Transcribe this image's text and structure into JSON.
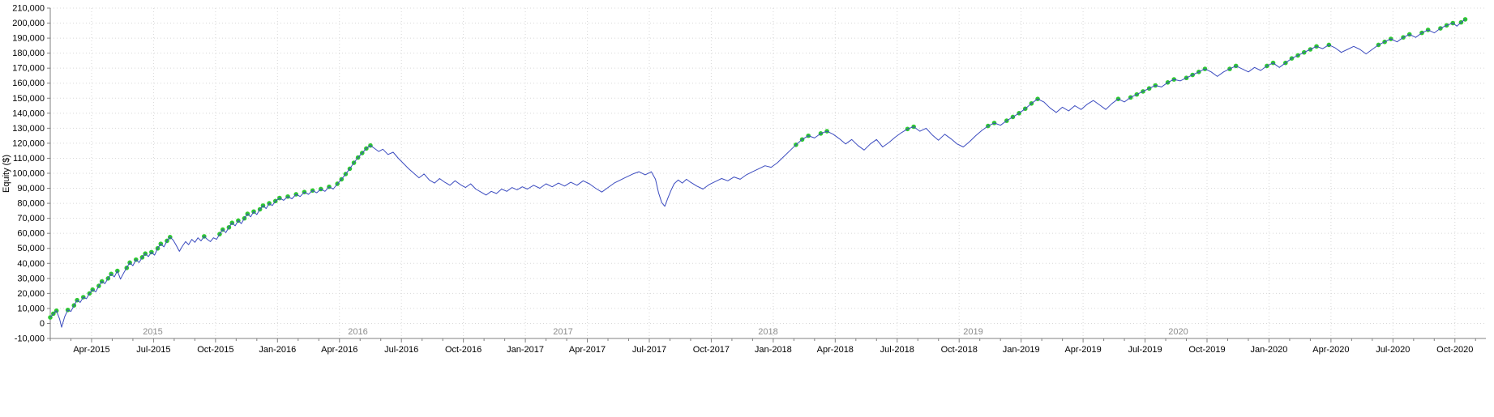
{
  "chart_data": {
    "type": "line",
    "title": "",
    "xlabel": "",
    "ylabel": "Equity ($)",
    "ylim": [
      -10000,
      210000
    ],
    "ytick_step": 10000,
    "x_domain": [
      1,
      70.5
    ],
    "grid": true,
    "legend": "none",
    "colors": {
      "line": "#3b4bbf",
      "new_high": "#2fc832",
      "grid": "#d8d8d8",
      "axis": "#808080",
      "year_label": "#8c8c8c",
      "tick_label": "#000000"
    },
    "x_ticks": [
      {
        "m": 3,
        "label": "Apr-2015"
      },
      {
        "m": 6,
        "label": "Jul-2015"
      },
      {
        "m": 9,
        "label": "Oct-2015"
      },
      {
        "m": 12,
        "label": "Jan-2016"
      },
      {
        "m": 15,
        "label": "Apr-2016"
      },
      {
        "m": 18,
        "label": "Jul-2016"
      },
      {
        "m": 21,
        "label": "Oct-2016"
      },
      {
        "m": 24,
        "label": "Jan-2017"
      },
      {
        "m": 27,
        "label": "Apr-2017"
      },
      {
        "m": 30,
        "label": "Jul-2017"
      },
      {
        "m": 33,
        "label": "Oct-2017"
      },
      {
        "m": 36,
        "label": "Jan-2018"
      },
      {
        "m": 39,
        "label": "Apr-2018"
      },
      {
        "m": 42,
        "label": "Jul-2018"
      },
      {
        "m": 45,
        "label": "Oct-2018"
      },
      {
        "m": 48,
        "label": "Jan-2019"
      },
      {
        "m": 51,
        "label": "Apr-2019"
      },
      {
        "m": 54,
        "label": "Jul-2019"
      },
      {
        "m": 57,
        "label": "Oct-2019"
      },
      {
        "m": 60,
        "label": "Jan-2020"
      },
      {
        "m": 63,
        "label": "Apr-2020"
      },
      {
        "m": 66,
        "label": "Jul-2020"
      },
      {
        "m": 69,
        "label": "Oct-2020"
      }
    ],
    "year_labels": [
      "2015",
      "2016",
      "2017",
      "2018",
      "2019",
      "2020"
    ],
    "series": [
      {
        "name": "Equity",
        "points": [
          [
            1.0,
            4000
          ],
          [
            1.15,
            6500
          ],
          [
            1.3,
            8500
          ],
          [
            1.45,
            3000
          ],
          [
            1.55,
            -2500
          ],
          [
            1.7,
            4500
          ],
          [
            1.85,
            9000
          ],
          [
            2.0,
            8000
          ],
          [
            2.15,
            12000
          ],
          [
            2.3,
            15500
          ],
          [
            2.45,
            14000
          ],
          [
            2.6,
            17500
          ],
          [
            2.75,
            16500
          ],
          [
            2.9,
            20000
          ],
          [
            3.05,
            22500
          ],
          [
            3.2,
            21000
          ],
          [
            3.35,
            25000
          ],
          [
            3.5,
            28000
          ],
          [
            3.65,
            26500
          ],
          [
            3.8,
            30000
          ],
          [
            3.95,
            33000
          ],
          [
            4.1,
            31000
          ],
          [
            4.25,
            35000
          ],
          [
            4.4,
            29500
          ],
          [
            4.55,
            33500
          ],
          [
            4.7,
            37000
          ],
          [
            4.85,
            40500
          ],
          [
            5.0,
            38500
          ],
          [
            5.15,
            42500
          ],
          [
            5.3,
            40500
          ],
          [
            5.45,
            44000
          ],
          [
            5.6,
            46500
          ],
          [
            5.75,
            44500
          ],
          [
            5.9,
            47500
          ],
          [
            6.05,
            45500
          ],
          [
            6.2,
            50000
          ],
          [
            6.35,
            53000
          ],
          [
            6.5,
            51000
          ],
          [
            6.65,
            55000
          ],
          [
            6.8,
            57500
          ],
          [
            6.95,
            55500
          ],
          [
            7.1,
            52000
          ],
          [
            7.25,
            48000
          ],
          [
            7.4,
            51500
          ],
          [
            7.55,
            54500
          ],
          [
            7.7,
            52500
          ],
          [
            7.85,
            56000
          ],
          [
            8.0,
            54000
          ],
          [
            8.15,
            57000
          ],
          [
            8.3,
            55000
          ],
          [
            8.45,
            58000
          ],
          [
            8.6,
            56000
          ],
          [
            8.75,
            54500
          ],
          [
            8.9,
            57000
          ],
          [
            9.05,
            56000
          ],
          [
            9.2,
            59500
          ],
          [
            9.35,
            62500
          ],
          [
            9.5,
            60500
          ],
          [
            9.65,
            64000
          ],
          [
            9.8,
            67000
          ],
          [
            9.95,
            65000
          ],
          [
            10.1,
            68500
          ],
          [
            10.25,
            66500
          ],
          [
            10.4,
            70000
          ],
          [
            10.55,
            73000
          ],
          [
            10.7,
            71000
          ],
          [
            10.85,
            74500
          ],
          [
            11.0,
            72500
          ],
          [
            11.15,
            76000
          ],
          [
            11.3,
            78500
          ],
          [
            11.45,
            76500
          ],
          [
            11.6,
            80000
          ],
          [
            11.75,
            78500
          ],
          [
            11.9,
            81500
          ],
          [
            12.1,
            83500
          ],
          [
            12.3,
            82000
          ],
          [
            12.5,
            84500
          ],
          [
            12.7,
            83000
          ],
          [
            12.9,
            86000
          ],
          [
            13.1,
            84500
          ],
          [
            13.3,
            87500
          ],
          [
            13.5,
            86000
          ],
          [
            13.7,
            88500
          ],
          [
            13.9,
            87000
          ],
          [
            14.1,
            89500
          ],
          [
            14.3,
            88000
          ],
          [
            14.5,
            91000
          ],
          [
            14.7,
            89500
          ],
          [
            14.9,
            93000
          ],
          [
            15.1,
            96000
          ],
          [
            15.3,
            99500
          ],
          [
            15.5,
            103000
          ],
          [
            15.7,
            107000
          ],
          [
            15.9,
            110500
          ],
          [
            16.1,
            113500
          ],
          [
            16.3,
            116500
          ],
          [
            16.5,
            118500
          ],
          [
            16.7,
            116500
          ],
          [
            16.9,
            114500
          ],
          [
            17.1,
            116000
          ],
          [
            17.35,
            112500
          ],
          [
            17.6,
            114000
          ],
          [
            17.85,
            110000
          ],
          [
            18.1,
            106500
          ],
          [
            18.35,
            103000
          ],
          [
            18.6,
            100000
          ],
          [
            18.85,
            97000
          ],
          [
            19.1,
            99500
          ],
          [
            19.35,
            95500
          ],
          [
            19.6,
            93500
          ],
          [
            19.85,
            96500
          ],
          [
            20.1,
            94000
          ],
          [
            20.35,
            92000
          ],
          [
            20.6,
            95000
          ],
          [
            20.85,
            92500
          ],
          [
            21.1,
            90500
          ],
          [
            21.35,
            93000
          ],
          [
            21.6,
            89500
          ],
          [
            21.85,
            87500
          ],
          [
            22.1,
            85500
          ],
          [
            22.35,
            88000
          ],
          [
            22.6,
            86500
          ],
          [
            22.85,
            89500
          ],
          [
            23.1,
            88000
          ],
          [
            23.35,
            90500
          ],
          [
            23.6,
            89000
          ],
          [
            23.85,
            91000
          ],
          [
            24.1,
            89500
          ],
          [
            24.4,
            92000
          ],
          [
            24.7,
            90000
          ],
          [
            25.0,
            93000
          ],
          [
            25.3,
            91000
          ],
          [
            25.6,
            93500
          ],
          [
            25.9,
            91500
          ],
          [
            26.2,
            94000
          ],
          [
            26.5,
            92000
          ],
          [
            26.8,
            95000
          ],
          [
            27.1,
            93000
          ],
          [
            27.4,
            90000
          ],
          [
            27.7,
            87500
          ],
          [
            28.0,
            90500
          ],
          [
            28.3,
            93500
          ],
          [
            28.6,
            95500
          ],
          [
            28.9,
            97500
          ],
          [
            29.2,
            99500
          ],
          [
            29.5,
            101000
          ],
          [
            29.8,
            99000
          ],
          [
            30.1,
            101000
          ],
          [
            30.3,
            96000
          ],
          [
            30.45,
            87000
          ],
          [
            30.6,
            80500
          ],
          [
            30.75,
            78000
          ],
          [
            30.9,
            83500
          ],
          [
            31.05,
            88500
          ],
          [
            31.2,
            93000
          ],
          [
            31.4,
            95500
          ],
          [
            31.6,
            93500
          ],
          [
            31.8,
            96000
          ],
          [
            32.0,
            94000
          ],
          [
            32.3,
            91500
          ],
          [
            32.6,
            89500
          ],
          [
            32.9,
            92500
          ],
          [
            33.2,
            94500
          ],
          [
            33.5,
            96500
          ],
          [
            33.8,
            95000
          ],
          [
            34.1,
            97500
          ],
          [
            34.4,
            96000
          ],
          [
            34.7,
            99000
          ],
          [
            35.0,
            101000
          ],
          [
            35.3,
            103000
          ],
          [
            35.6,
            105000
          ],
          [
            35.9,
            104000
          ],
          [
            36.2,
            107000
          ],
          [
            36.5,
            111000
          ],
          [
            36.8,
            115000
          ],
          [
            37.1,
            119000
          ],
          [
            37.4,
            122500
          ],
          [
            37.7,
            125000
          ],
          [
            38.0,
            123500
          ],
          [
            38.3,
            126500
          ],
          [
            38.6,
            128000
          ],
          [
            38.9,
            126000
          ],
          [
            39.2,
            123000
          ],
          [
            39.5,
            119500
          ],
          [
            39.8,
            122500
          ],
          [
            40.1,
            118500
          ],
          [
            40.4,
            115500
          ],
          [
            40.7,
            119500
          ],
          [
            41.0,
            122500
          ],
          [
            41.3,
            117500
          ],
          [
            41.6,
            120500
          ],
          [
            41.9,
            124000
          ],
          [
            42.2,
            127000
          ],
          [
            42.5,
            129500
          ],
          [
            42.8,
            131000
          ],
          [
            43.1,
            128000
          ],
          [
            43.4,
            130000
          ],
          [
            43.7,
            125500
          ],
          [
            44.0,
            122000
          ],
          [
            44.3,
            126000
          ],
          [
            44.6,
            123000
          ],
          [
            44.9,
            119500
          ],
          [
            45.2,
            117500
          ],
          [
            45.5,
            121000
          ],
          [
            45.8,
            125000
          ],
          [
            46.1,
            128500
          ],
          [
            46.4,
            131500
          ],
          [
            46.7,
            133500
          ],
          [
            47.0,
            132000
          ],
          [
            47.3,
            135000
          ],
          [
            47.6,
            137500
          ],
          [
            47.9,
            140000
          ],
          [
            48.2,
            143000
          ],
          [
            48.5,
            146500
          ],
          [
            48.8,
            149500
          ],
          [
            49.1,
            147500
          ],
          [
            49.4,
            143500
          ],
          [
            49.7,
            140500
          ],
          [
            50.0,
            144000
          ],
          [
            50.3,
            141500
          ],
          [
            50.6,
            145000
          ],
          [
            50.9,
            142500
          ],
          [
            51.2,
            146000
          ],
          [
            51.5,
            148500
          ],
          [
            51.8,
            145500
          ],
          [
            52.1,
            142500
          ],
          [
            52.4,
            146500
          ],
          [
            52.7,
            149500
          ],
          [
            53.0,
            147500
          ],
          [
            53.3,
            150500
          ],
          [
            53.6,
            152500
          ],
          [
            53.9,
            154500
          ],
          [
            54.2,
            156500
          ],
          [
            54.5,
            158500
          ],
          [
            54.8,
            157500
          ],
          [
            55.1,
            160500
          ],
          [
            55.4,
            162500
          ],
          [
            55.7,
            161500
          ],
          [
            56.0,
            163500
          ],
          [
            56.3,
            165500
          ],
          [
            56.6,
            167500
          ],
          [
            56.9,
            169500
          ],
          [
            57.2,
            167500
          ],
          [
            57.5,
            164500
          ],
          [
            57.8,
            167500
          ],
          [
            58.1,
            169500
          ],
          [
            58.4,
            171500
          ],
          [
            58.7,
            169500
          ],
          [
            59.0,
            167500
          ],
          [
            59.3,
            170500
          ],
          [
            59.6,
            168500
          ],
          [
            59.9,
            171500
          ],
          [
            60.2,
            173500
          ],
          [
            60.5,
            170500
          ],
          [
            60.8,
            173500
          ],
          [
            61.1,
            176500
          ],
          [
            61.4,
            178500
          ],
          [
            61.7,
            180500
          ],
          [
            62.0,
            182500
          ],
          [
            62.3,
            184500
          ],
          [
            62.6,
            183000
          ],
          [
            62.9,
            185500
          ],
          [
            63.2,
            183500
          ],
          [
            63.5,
            180500
          ],
          [
            63.8,
            182500
          ],
          [
            64.1,
            184500
          ],
          [
            64.4,
            182500
          ],
          [
            64.7,
            179500
          ],
          [
            65.0,
            182500
          ],
          [
            65.3,
            185500
          ],
          [
            65.6,
            187500
          ],
          [
            65.9,
            189500
          ],
          [
            66.2,
            187500
          ],
          [
            66.5,
            190500
          ],
          [
            66.8,
            192500
          ],
          [
            67.1,
            190500
          ],
          [
            67.4,
            193500
          ],
          [
            67.7,
            195500
          ],
          [
            68.0,
            193500
          ],
          [
            68.3,
            196500
          ],
          [
            68.6,
            198500
          ],
          [
            68.9,
            200000
          ],
          [
            69.1,
            198000
          ],
          [
            69.3,
            200500
          ],
          [
            69.5,
            202500
          ]
        ]
      }
    ]
  }
}
